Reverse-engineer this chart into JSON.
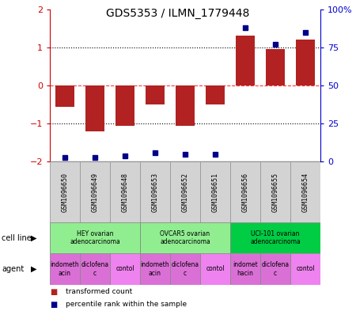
{
  "title": "GDS5353 / ILMN_1779448",
  "samples": [
    "GSM1096650",
    "GSM1096649",
    "GSM1096648",
    "GSM1096653",
    "GSM1096652",
    "GSM1096651",
    "GSM1096656",
    "GSM1096655",
    "GSM1096654"
  ],
  "transformed_counts": [
    -0.55,
    -1.2,
    -1.05,
    -0.5,
    -1.05,
    -0.5,
    1.3,
    0.95,
    1.2
  ],
  "percentile_ranks": [
    3,
    3,
    4,
    6,
    5,
    5,
    88,
    77,
    85
  ],
  "bar_color": "#B22222",
  "dot_color": "#00008B",
  "ylim_left": [
    -2,
    2
  ],
  "ylim_right": [
    0,
    100
  ],
  "yticks_left": [
    -2,
    -1,
    0,
    1,
    2
  ],
  "yticks_right": [
    0,
    25,
    50,
    75,
    100
  ],
  "ytick_labels_right": [
    "0",
    "25",
    "50",
    "75",
    "100%"
  ],
  "dotted_lines": [
    -1,
    1
  ],
  "red_dashed_line": 0,
  "cell_lines": [
    {
      "label": "HEY ovarian\nadenocarcinoma",
      "start": 0,
      "end": 3,
      "color": "#90EE90"
    },
    {
      "label": "OVCAR5 ovarian\nadenocarcinoma",
      "start": 3,
      "end": 6,
      "color": "#90EE90"
    },
    {
      "label": "UCI-101 ovarian\nadenocarcinoma",
      "start": 6,
      "end": 9,
      "color": "#00CC44"
    }
  ],
  "agents": [
    {
      "label": "indometh\nacin",
      "start": 0,
      "end": 1,
      "color": "#DA70D6"
    },
    {
      "label": "diclofena\nc",
      "start": 1,
      "end": 2,
      "color": "#DA70D6"
    },
    {
      "label": "contol",
      "start": 2,
      "end": 3,
      "color": "#EE82EE"
    },
    {
      "label": "indometh\nacin",
      "start": 3,
      "end": 4,
      "color": "#DA70D6"
    },
    {
      "label": "diclofena\nc",
      "start": 4,
      "end": 5,
      "color": "#DA70D6"
    },
    {
      "label": "contol",
      "start": 5,
      "end": 6,
      "color": "#EE82EE"
    },
    {
      "label": "indomet\nhacin",
      "start": 6,
      "end": 7,
      "color": "#DA70D6"
    },
    {
      "label": "diclofena\nc",
      "start": 7,
      "end": 8,
      "color": "#DA70D6"
    },
    {
      "label": "contol",
      "start": 8,
      "end": 9,
      "color": "#EE82EE"
    }
  ],
  "legend_items": [
    {
      "label": "transformed count",
      "color": "#B22222"
    },
    {
      "label": "percentile rank within the sample",
      "color": "#00008B"
    }
  ],
  "cell_line_label": "cell line",
  "agent_label": "agent",
  "sample_box_color": "#D3D3D3",
  "sample_box_edge_color": "#999999",
  "background_color": "#FFFFFF",
  "axis_color_left": "#CC0000",
  "axis_color_right": "#0000CC"
}
